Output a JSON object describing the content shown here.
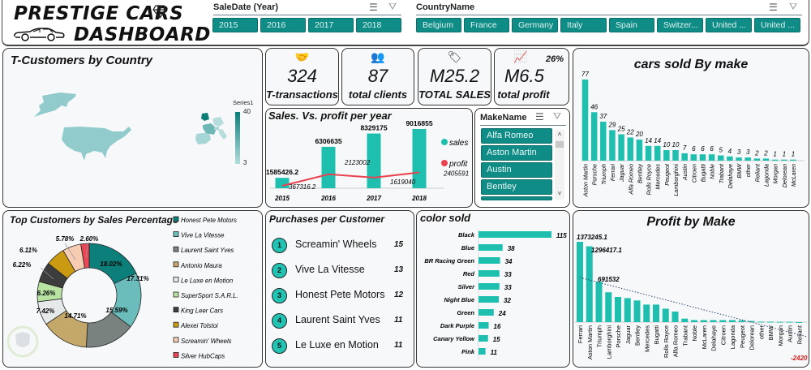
{
  "header": {
    "title_line1": "PRESTIGE CARS",
    "title_line2": "DASHBOARD",
    "icons": [
      "diamond-icon",
      "car-icon"
    ]
  },
  "slicers": {
    "year": {
      "title": "SaleDate (Year)",
      "items": [
        "2015",
        "2016",
        "2017",
        "2018"
      ],
      "icons": [
        "multi-select-icon",
        "clear-filter-icon"
      ]
    },
    "country": {
      "title": "CountryName",
      "items": [
        "Belgium",
        "France",
        "Germany",
        "Italy",
        "Spain",
        "Switzer...",
        "United ...",
        "United ..."
      ],
      "icons": [
        "multi-select-icon",
        "clear-filter-icon"
      ]
    },
    "make": {
      "title": "MakeName",
      "items": [
        "Alfa Romeo",
        "Aston Martin",
        "Austin",
        "Bentley"
      ],
      "icons": [
        "multi-select-icon",
        "clear-filter-icon"
      ]
    }
  },
  "map": {
    "title": "T-Customers by Country",
    "legend_title": "Series1",
    "legend_max": "40",
    "legend_min": "3"
  },
  "kpis": [
    {
      "icon": "handshake-icon",
      "value": "324",
      "label": "T-transactions"
    },
    {
      "icon": "clients-icon",
      "value": "87",
      "label": "total clients"
    },
    {
      "icon": "sale-tag-icon",
      "value": "M25.2",
      "label": "TOTAL SALES"
    },
    {
      "icon": "profit-icon",
      "value": "M6.5",
      "label": "total profit",
      "badge": "26%"
    }
  ],
  "purchases": {
    "title": "Purchases per Customer",
    "items": [
      {
        "rank": "1",
        "name": "Screamin' Wheels",
        "value": "15"
      },
      {
        "rank": "2",
        "name": "Vive La Vitesse",
        "value": "13"
      },
      {
        "rank": "3",
        "name": "Honest Pete Motors",
        "value": "12"
      },
      {
        "rank": "4",
        "name": "Laurent Saint Yves",
        "value": "11"
      },
      {
        "rank": "5",
        "name": "Le Luxe en Motion",
        "value": "11"
      }
    ]
  },
  "colors": {
    "teal": "#1fbfb0",
    "slicer": "#0f8c86",
    "profit_line": "#e8434f"
  },
  "chart_data": [
    {
      "id": "sales_vs_profit",
      "type": "bar",
      "title": "Sales. Vs. profit per year",
      "categories": [
        "2015",
        "2016",
        "2017",
        "2018"
      ],
      "series": [
        {
          "name": "sales",
          "type": "bar",
          "values": [
            1585426.2,
            6306635,
            8329175,
            9016855
          ],
          "labels": [
            "1585426.2",
            "6306635",
            "8329175",
            "9016855"
          ]
        },
        {
          "name": "profit",
          "type": "line",
          "values": [
            367316.2,
            2123002,
            1619040,
            2405591
          ],
          "labels": [
            "367316.2",
            "2123002",
            "1619040",
            "2405591"
          ]
        }
      ],
      "legend": [
        "sales",
        "profit"
      ],
      "legend_position": "right"
    },
    {
      "id": "cars_sold_by_make",
      "type": "bar",
      "title": "cars sold By make",
      "categories": [
        "Aston Martin",
        "Porsche",
        "Triumph",
        "Ferrari",
        "Jaguar",
        "Alfa Romeo",
        "Bentley",
        "Rolls Royce",
        "Mercedes",
        "Peugeot",
        "Lamborghini",
        "Austin",
        "Citroen",
        "Bugatti",
        "Noble",
        "Trabant",
        "Delahaye",
        "BMW",
        "other",
        "Reliant",
        "Lagonda",
        "Morgan",
        "Delorean",
        "McLaren"
      ],
      "values": [
        77,
        46,
        37,
        29,
        25,
        22,
        20,
        14,
        14,
        10,
        10,
        7,
        6,
        6,
        6,
        5,
        4,
        3,
        3,
        2,
        2,
        1,
        1,
        1
      ]
    },
    {
      "id": "top_customers_pct",
      "type": "pie",
      "title": "Top Customers by Sales Percentage",
      "categories": [
        "Honest Pete Motors",
        "Vive La Vitesse",
        "Laurent Saint Yves",
        "Antonio Maura",
        "Le Luxe en Motion",
        "SuperSport S.A.R.L.",
        "King Leer Cars",
        "Alexei Tolstoi",
        "Screamin' Wheels",
        "Silver HubCaps"
      ],
      "values": [
        18.02,
        17.31,
        15.59,
        14.71,
        7.42,
        6.26,
        6.22,
        6.11,
        5.78,
        2.6
      ],
      "labels": [
        "18.02%",
        "17.31%",
        "15.59%",
        "14.71%",
        "7.42%",
        "6.26%",
        "6.22%",
        "6.11%",
        "5.78%",
        "2.60%"
      ],
      "colors": [
        "#0c7f7a",
        "#6bbdbb",
        "#7a8280",
        "#c4a86a",
        "#e6e9ea",
        "#b9e3a2",
        "#3d3d3d",
        "#c99a12",
        "#f6cdb3",
        "#ea4655"
      ],
      "legend_position": "right"
    },
    {
      "id": "color_sold",
      "type": "bar",
      "orientation": "horizontal",
      "title": "color sold",
      "categories": [
        "Black",
        "Blue",
        "BR Racing Green",
        "Red",
        "Silver",
        "Night Blue",
        "Green",
        "Dark Purple",
        "Canary Yellow",
        "Pink"
      ],
      "values": [
        115,
        38,
        34,
        33,
        33,
        32,
        24,
        16,
        15,
        11
      ]
    },
    {
      "id": "profit_by_make",
      "type": "bar",
      "title": "Profit by Make",
      "categories": [
        "Ferrari",
        "Aston Martin",
        "Triumph",
        "Lamborghini",
        "Porsche",
        "Jaguar",
        "Bentley",
        "Mercedes",
        "Bugatti",
        "Rolls Royce",
        "Alfa Romeo",
        "Trabant",
        "Noble",
        "McLaren",
        "Delahaye",
        "Citroen",
        "Lagonda",
        "Peugeot",
        "Delorean",
        "other",
        "BMW",
        "Morgan",
        "Austin",
        "Reliant"
      ],
      "values": [
        1373245.1,
        1296417.1,
        691532,
        510000,
        430000,
        410000,
        370000,
        300000,
        300000,
        230000,
        180000,
        60000,
        35000,
        35000,
        35000,
        35000,
        35000,
        30000,
        20000,
        8000,
        8000,
        6000,
        6000,
        -2420
      ],
      "data_labels": {
        "Ferrari": "1373245.1",
        "Aston Martin": "1296417.1",
        "Triumph": "691532",
        "Reliant": "-2420"
      },
      "trendline": "linear dotted"
    }
  ]
}
